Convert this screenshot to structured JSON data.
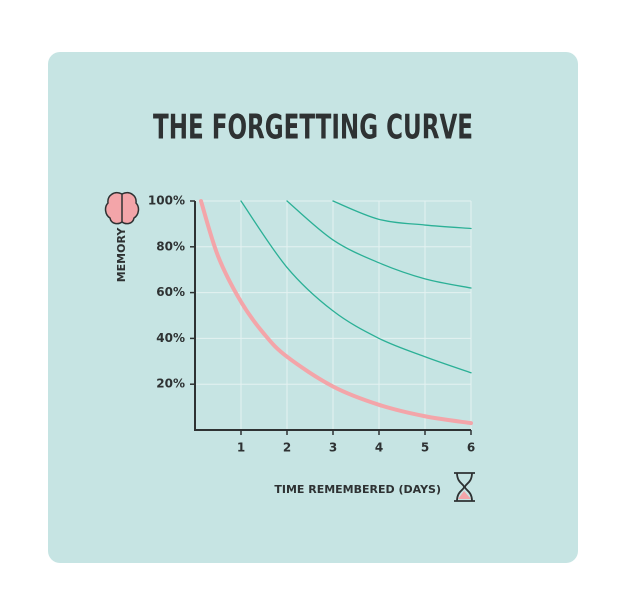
{
  "chart_data": {
    "type": "line",
    "title": "THE FORGETTING CURVE",
    "y_label": "MEMORY",
    "x_label": "TIME REMEMBERED (DAYS)",
    "xlim": [
      0,
      6
    ],
    "ylim": [
      0,
      100
    ],
    "xticks": [
      1,
      2,
      3,
      4,
      5,
      6
    ],
    "yticks": [
      {
        "value": 20,
        "label": "20%"
      },
      {
        "value": 40,
        "label": "40%"
      },
      {
        "value": 60,
        "label": "60%"
      },
      {
        "value": 80,
        "label": "80%"
      },
      {
        "value": 100,
        "label": "100%"
      }
    ],
    "grid": true,
    "series": [
      {
        "color": "#f3a5a9",
        "width": 4,
        "x": [
          0.13,
          0.5,
          1,
          1.5,
          2,
          3,
          4,
          5,
          6
        ],
        "values": [
          100,
          76,
          56,
          42,
          32,
          19,
          11,
          6,
          3
        ]
      },
      {
        "color": "#2bb096",
        "width": 1.3,
        "x": [
          1,
          2,
          3,
          4,
          5,
          6
        ],
        "values": [
          100,
          71,
          52,
          40,
          32,
          25
        ]
      },
      {
        "color": "#2bb096",
        "width": 1.3,
        "x": [
          2,
          3,
          4,
          5,
          6
        ],
        "values": [
          100,
          83,
          73,
          66,
          62
        ]
      },
      {
        "color": "#2bb096",
        "width": 1.3,
        "x": [
          3,
          4,
          5,
          6
        ],
        "values": [
          100,
          92,
          89.5,
          88
        ]
      }
    ]
  }
}
